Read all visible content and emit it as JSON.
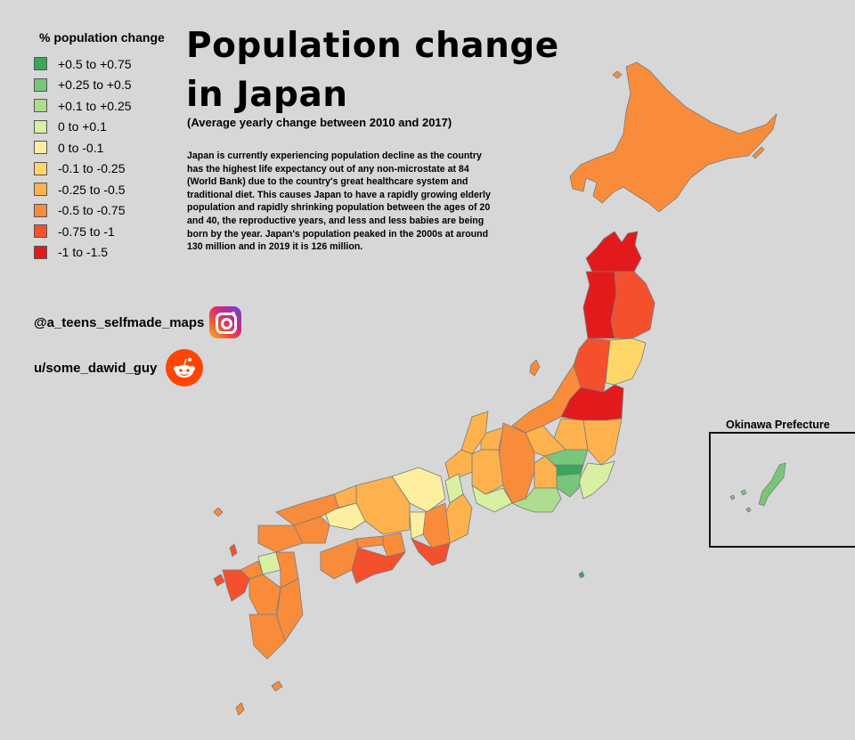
{
  "title": "Population change in Japan",
  "subtitle": "(Average yearly change between 2010 and 2017)",
  "description": "Japan is currently experiencing population decline as the country has the highest life expectancy out of any non-microstate at 84 (World Bank) due to the country's great healthcare system and traditional diet. This causes Japan to have a rapidly growing elderly population and rapidly shrinking population between the ages of 20 and 40, the reproductive years, and less and less babies are being born by the year. Japan's population peaked in the 2000s at around 130 million and in 2019 it is 126 million.",
  "legend": {
    "title": "% population change",
    "items": [
      {
        "label": "+0.5 to +0.75",
        "color": "#3aa65a"
      },
      {
        "label": "+0.25 to +0.5",
        "color": "#78c679"
      },
      {
        "label": "+0.1 to +0.25",
        "color": "#addd8e"
      },
      {
        "label": "0 to +0.1",
        "color": "#d9f0a3"
      },
      {
        "label": "0 to -0.1",
        "color": "#fdeea0"
      },
      {
        "label": "-0.1 to -0.25",
        "color": "#fed668"
      },
      {
        "label": "-0.25 to -0.5",
        "color": "#fdb24d"
      },
      {
        "label": "-0.5 to -0.75",
        "color": "#f98c3a"
      },
      {
        "label": "-0.75 to -1",
        "color": "#f4502e"
      },
      {
        "label": "-1 to -1.5",
        "color": "#e31a1c"
      }
    ]
  },
  "credits": {
    "instagram": "@a_teens_selfmade_maps",
    "instagram_icon": "instagram-icon",
    "reddit": "u/some_dawid_guy",
    "reddit_icon": "reddit-icon"
  },
  "inset": {
    "title": "Okinawa Prefecture"
  }
}
